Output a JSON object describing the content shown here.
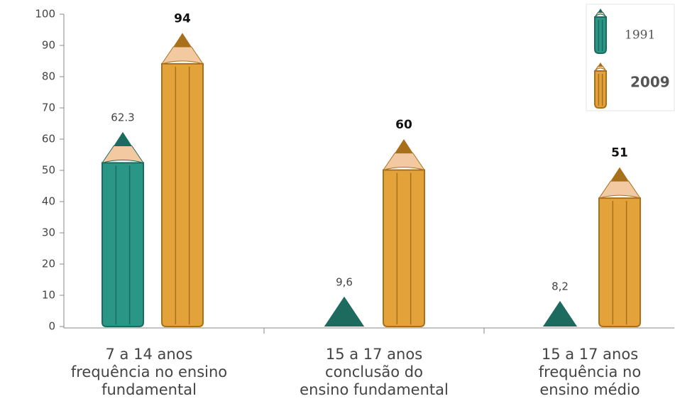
{
  "chart_data": {
    "type": "bar",
    "categories": [
      [
        "7 a 14 anos",
        "frequência no ensino",
        "fundamental"
      ],
      [
        "15 a 17 anos",
        "conclusão do",
        "ensino fundamental"
      ],
      [
        "15 a 17 anos",
        "frequência no",
        "ensino médio"
      ]
    ],
    "series": [
      {
        "name": "1991",
        "color": "#2a9686",
        "values": [
          62.3,
          9.6,
          8.2
        ],
        "value_labels": [
          "62.3",
          "9,6",
          "8,2"
        ]
      },
      {
        "name": "2009",
        "color": "#e3a23a",
        "values": [
          94,
          60,
          51
        ]
      }
    ],
    "ylim": [
      0,
      100
    ],
    "yticks": [
      0,
      10,
      20,
      30,
      40,
      50,
      60,
      70,
      80,
      90,
      100
    ],
    "legend": "top-right"
  }
}
